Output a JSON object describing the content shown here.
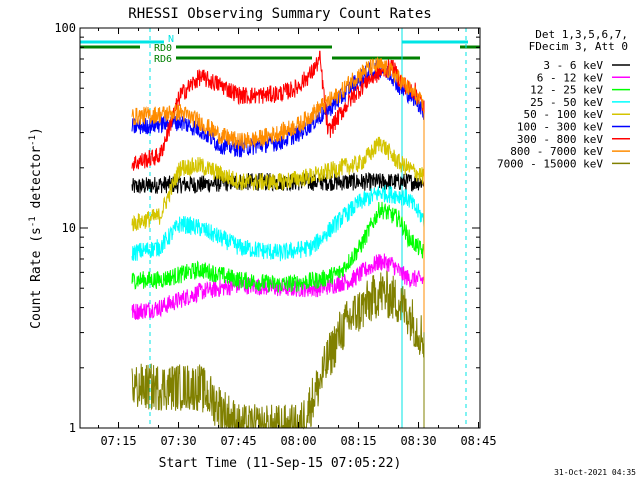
{
  "chart_data": {
    "type": "line",
    "title": "RHESSI Observing Summary Count Rates",
    "xlabel": "Start Time (11-Sep-15 07:05:22)",
    "ylabel": "Count Rate (s",
    "ylabel_sup": "-1",
    "ylabel_tail": " detector",
    "ylabel_end": ")",
    "y_scale": "log",
    "ylim": [
      1,
      100
    ],
    "xlim_minutes": [
      0,
      100
    ],
    "x_ticks": [
      {
        "minute": 9.63,
        "label": "07:15"
      },
      {
        "minute": 24.63,
        "label": "07:30"
      },
      {
        "minute": 39.63,
        "label": "07:45"
      },
      {
        "minute": 54.63,
        "label": "08:00"
      },
      {
        "minute": 69.63,
        "label": "08:15"
      },
      {
        "minute": 84.63,
        "label": "08:30"
      },
      {
        "minute": 99.63,
        "label": "08:45"
      }
    ],
    "y_ticks": [
      {
        "value": 1,
        "label": "1"
      },
      {
        "value": 10,
        "label": "10"
      },
      {
        "value": 100,
        "label": "100"
      }
    ],
    "legend_header": [
      "Det 1,3,5,6,7,",
      "FDecim 3, Att 0"
    ],
    "legend_placement": "right",
    "series": [
      {
        "name": "3 - 6 keV",
        "color": "#000000",
        "x": [
          13,
          20,
          30,
          40,
          50,
          60,
          70,
          75,
          80,
          82,
          86
        ],
        "y": [
          16,
          16.5,
          16.5,
          17,
          17,
          17,
          17,
          17,
          17,
          17,
          17
        ]
      },
      {
        "name": "6 - 12 keV",
        "color": "#ff00ff",
        "x": [
          13,
          20,
          30,
          40,
          50,
          60,
          68,
          72,
          75,
          78,
          80,
          82,
          86
        ],
        "y": [
          3.8,
          4.0,
          4.8,
          5.2,
          5.0,
          5.0,
          5.5,
          6.3,
          6.8,
          6.6,
          6.0,
          5.6,
          5.5
        ]
      },
      {
        "name": "12 - 25 keV",
        "color": "#00ff00",
        "x": [
          13,
          20,
          30,
          40,
          50,
          60,
          65,
          70,
          75,
          80,
          82,
          86
        ],
        "y": [
          5.5,
          5.5,
          6.2,
          5.5,
          5.2,
          5.5,
          6.0,
          8.0,
          12.5,
          11.0,
          9.0,
          7.5
        ]
      },
      {
        "name": "25 - 50 keV",
        "color": "#00ffff",
        "x": [
          13,
          20,
          25,
          30,
          40,
          50,
          58,
          65,
          70,
          75,
          80,
          82,
          86
        ],
        "y": [
          7.5,
          8.0,
          10.5,
          10.0,
          8.0,
          7.5,
          8.0,
          11.0,
          13.5,
          15.0,
          14.5,
          14.0,
          11.0
        ]
      },
      {
        "name": "50 - 100 keV",
        "color": "#d4c400",
        "x": [
          13,
          20,
          25,
          30,
          40,
          50,
          60,
          65,
          70,
          73,
          75,
          78,
          80,
          82,
          86
        ],
        "y": [
          10.5,
          11.5,
          20.0,
          20.5,
          17.0,
          17.0,
          18.5,
          20.0,
          21.0,
          24.0,
          27.0,
          23.0,
          21.0,
          20.0,
          18.0
        ]
      },
      {
        "name": "100 - 300 keV",
        "color": "#0000ff",
        "x": [
          13,
          20,
          25,
          30,
          35,
          40,
          45,
          50,
          55,
          60,
          65,
          68,
          72,
          75,
          78,
          80,
          82,
          84,
          86
        ],
        "y": [
          32,
          33,
          34,
          31,
          26,
          25,
          26,
          27,
          30,
          36,
          44,
          52,
          60,
          63,
          58,
          50,
          47,
          44,
          38
        ]
      },
      {
        "name": "300 - 800 keV",
        "color": "#ff0000",
        "x": [
          13,
          20,
          25,
          30,
          35,
          40,
          45,
          50,
          54,
          58,
          60,
          62,
          65,
          68,
          72,
          75,
          78,
          80,
          82,
          84,
          86
        ],
        "y": [
          21,
          23,
          46,
          57,
          52,
          46,
          46,
          47,
          50,
          60,
          70,
          30,
          37,
          45,
          55,
          60,
          64,
          55,
          50,
          48,
          40
        ]
      },
      {
        "name": "800 - 7000 keV",
        "color": "#ff8c00",
        "x": [
          13,
          20,
          25,
          30,
          35,
          40,
          45,
          50,
          55,
          60,
          65,
          68,
          72,
          75,
          78,
          80,
          82,
          84,
          86
        ],
        "y": [
          36,
          37,
          38,
          34,
          29,
          27,
          28,
          30,
          33,
          40,
          47,
          55,
          63,
          65,
          60,
          55,
          50,
          46,
          40
        ]
      },
      {
        "name": "7000 - 15000 keV",
        "color": "#808000",
        "x": [
          13,
          20,
          25,
          30,
          40,
          45,
          50,
          55,
          60,
          62,
          65,
          68,
          72,
          75,
          78,
          80,
          82,
          84,
          86
        ],
        "y": [
          1.6,
          1.6,
          1.6,
          1.6,
          1.0,
          1.0,
          1.0,
          1.0,
          1.7,
          2.2,
          3.0,
          3.6,
          4.2,
          4.8,
          4.5,
          4.2,
          3.8,
          3.2,
          2.8
        ]
      }
    ],
    "flag_bars": [
      {
        "label": "N",
        "color": "#00e5e5",
        "ranges": [
          [
            0,
            21
          ]
        ]
      },
      {
        "label": "",
        "color": "#00e5e5",
        "ranges": [
          [
            80.5,
            97
          ]
        ]
      },
      {
        "label": "RD0",
        "color": "#008000",
        "ranges": [
          [
            0,
            15
          ],
          [
            24,
            63
          ],
          [
            95,
            100
          ]
        ]
      },
      {
        "label": "RD6",
        "color": "#008000",
        "ranges": [
          [
            24,
            58
          ],
          [
            63,
            85
          ]
        ]
      }
    ],
    "vertical_lines": [
      {
        "minute": 0,
        "color": "#00e5e5",
        "style": "solid"
      },
      {
        "minute": 17.5,
        "color": "#00e5e5",
        "style": "dashed"
      },
      {
        "minute": 80.5,
        "color": "#00e5e5",
        "style": "solid"
      },
      {
        "minute": 96.5,
        "color": "#00e5e5",
        "style": "dashed"
      }
    ],
    "grid": false
  },
  "footer": {
    "timestamp": "31-Oct-2021 04:35"
  }
}
